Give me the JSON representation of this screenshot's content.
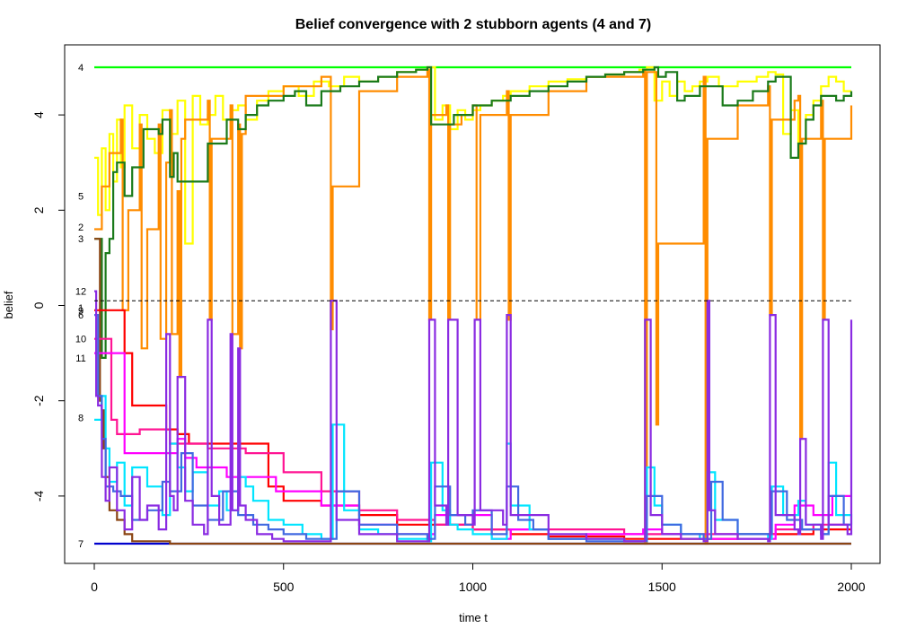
{
  "chart_data": {
    "type": "line",
    "title": "Belief convergence with 2 stubborn agents (4 and 7)",
    "xlabel": "time t",
    "ylabel": "belief",
    "xlim": [
      0,
      2000
    ],
    "ylim": [
      -5.5,
      5.0
    ],
    "xticks": [
      0,
      500,
      1000,
      1500,
      2000
    ],
    "yticks": [
      -4,
      -2,
      0,
      2,
      4
    ],
    "grid": false,
    "reference_line": {
      "y": 0.1,
      "style": "dashed"
    },
    "agent_labels": [
      {
        "text": "4",
        "y": 5.0
      },
      {
        "text": "5",
        "y": 2.3
      },
      {
        "text": "2",
        "y": 1.65
      },
      {
        "text": "3",
        "y": 1.4
      },
      {
        "text": "12",
        "y": 0.3
      },
      {
        "text": "1",
        "y": -0.05
      },
      {
        "text": "9",
        "y": -0.1
      },
      {
        "text": "6",
        "y": -0.2
      },
      {
        "text": "10",
        "y": -0.7
      },
      {
        "text": "11",
        "y": -1.1
      },
      {
        "text": "8",
        "y": -2.35
      },
      {
        "text": "7",
        "y": -5.0
      }
    ],
    "series": [
      {
        "color": "#00ff00",
        "x": [
          0,
          2000
        ],
        "y": [
          5.0,
          5.0
        ]
      },
      {
        "color": "#0000cd",
        "x": [
          0,
          2000
        ],
        "y": [
          -5.0,
          -5.0
        ]
      },
      {
        "color": "#ffff00",
        "x": [
          0,
          10,
          20,
          30,
          40,
          50,
          60,
          70,
          80,
          100,
          120,
          140,
          160,
          180,
          200,
          220,
          240,
          260,
          280,
          300,
          320,
          340,
          360,
          380,
          400,
          430,
          460,
          500,
          540,
          580,
          620,
          660,
          700,
          750,
          800,
          850,
          880,
          900,
          920,
          940,
          960,
          980,
          1000,
          1020,
          1050,
          1080,
          1100,
          1150,
          1200,
          1250,
          1300,
          1350,
          1400,
          1440,
          1460,
          1480,
          1500,
          1520,
          1540,
          1560,
          1580,
          1600,
          1620,
          1650,
          1700,
          1750,
          1780,
          1800,
          1820,
          1840,
          1860,
          1880,
          1900,
          1920,
          1940,
          1960,
          1980,
          2000
        ],
        "y": [
          3.1,
          1.9,
          3.3,
          2.0,
          3.6,
          2.6,
          3.9,
          2.9,
          4.2,
          3.3,
          4.0,
          3.5,
          3.2,
          4.1,
          3.6,
          4.3,
          1.3,
          4.4,
          3.8,
          4.0,
          4.4,
          3.9,
          4.1,
          4.2,
          3.9,
          4.3,
          4.5,
          4.6,
          4.4,
          4.7,
          4.6,
          4.8,
          4.7,
          4.8,
          4.9,
          4.95,
          5.0,
          3.9,
          4.2,
          3.7,
          4.1,
          3.9,
          4.1,
          4.2,
          4.3,
          4.4,
          4.5,
          4.6,
          4.7,
          4.75,
          4.8,
          4.85,
          4.9,
          4.95,
          5.0,
          4.3,
          4.7,
          4.4,
          4.7,
          4.5,
          4.6,
          4.7,
          4.8,
          4.6,
          4.7,
          4.8,
          4.9,
          4.85,
          3.6,
          4.1,
          3.4,
          4.0,
          4.3,
          4.6,
          4.8,
          4.7,
          4.5,
          4.5
        ]
      },
      {
        "color": "#ff8c00",
        "x": [
          0,
          20,
          40,
          70,
          75,
          90,
          120,
          125,
          140,
          170,
          175,
          190,
          200,
          205,
          220,
          225,
          230,
          240,
          300,
          305,
          310,
          360,
          365,
          380,
          385,
          390,
          400,
          500,
          600,
          625,
          630,
          700,
          800,
          880,
          885,
          890,
          930,
          935,
          940,
          970,
          1000,
          1010,
          1020,
          1090,
          1095,
          1100,
          1200,
          1300,
          1450,
          1455,
          1460,
          1480,
          1485,
          1490,
          1500,
          1550,
          1610,
          1615,
          1620,
          1700,
          1780,
          1785,
          1790,
          1850,
          1860,
          1865,
          1870,
          1920,
          1925,
          1930,
          2000
        ],
        "y": [
          1.6,
          2.5,
          3.2,
          3.9,
          -0.1,
          2.0,
          3.8,
          -0.9,
          1.6,
          3.8,
          -0.7,
          3.0,
          4.1,
          -0.6,
          2.4,
          -1.5,
          3.5,
          3.9,
          4.3,
          -0.3,
          3.5,
          4.2,
          -0.6,
          3.8,
          -0.9,
          3.6,
          4.4,
          4.6,
          4.8,
          -0.5,
          2.5,
          4.5,
          4.8,
          4.95,
          -0.3,
          4.0,
          4.2,
          -0.3,
          3.8,
          4.0,
          4.2,
          -0.3,
          4.0,
          4.5,
          -0.3,
          4.0,
          4.5,
          4.8,
          4.95,
          -5.0,
          4.9,
          4.9,
          -2.5,
          1.3,
          1.3,
          1.3,
          4.8,
          -5.0,
          3.5,
          4.2,
          4.6,
          -0.2,
          3.9,
          4.3,
          4.4,
          -2.8,
          3.5,
          4.3,
          -0.3,
          3.5,
          4.2
        ]
      },
      {
        "color": "#1a7a1a",
        "x": [
          0,
          20,
          30,
          40,
          50,
          60,
          80,
          100,
          130,
          170,
          180,
          200,
          210,
          220,
          250,
          280,
          300,
          310,
          350,
          380,
          400,
          430,
          460,
          500,
          530,
          560,
          600,
          650,
          700,
          750,
          800,
          850,
          880,
          890,
          920,
          950,
          1000,
          1050,
          1100,
          1150,
          1200,
          1250,
          1300,
          1350,
          1400,
          1450,
          1480,
          1490,
          1510,
          1540,
          1560,
          1600,
          1620,
          1660,
          1700,
          1740,
          1780,
          1800,
          1840,
          1860,
          1880,
          1900,
          1920,
          1960,
          1980,
          2000
        ],
        "y": [
          1.4,
          -1.1,
          1.1,
          1.4,
          2.8,
          3.0,
          2.3,
          2.9,
          3.7,
          3.6,
          3.9,
          2.7,
          3.2,
          2.6,
          2.6,
          2.6,
          3.4,
          3.4,
          3.9,
          3.7,
          4.0,
          4.2,
          4.3,
          4.4,
          4.5,
          4.2,
          4.5,
          4.6,
          4.7,
          4.8,
          4.9,
          4.95,
          5.0,
          3.8,
          3.8,
          4.0,
          4.2,
          4.3,
          4.4,
          4.5,
          4.6,
          4.7,
          4.8,
          4.85,
          4.9,
          4.95,
          5.0,
          4.8,
          4.9,
          4.3,
          4.4,
          4.6,
          4.6,
          4.2,
          4.3,
          4.5,
          4.7,
          4.8,
          3.1,
          3.4,
          3.9,
          4.2,
          4.4,
          4.3,
          4.4,
          4.5
        ]
      },
      {
        "color": "#8b4513",
        "x": [
          0,
          10,
          15,
          20,
          25,
          30,
          40,
          60,
          80,
          100,
          200,
          500,
          2000
        ],
        "y": [
          1.4,
          1.4,
          -2.0,
          -2.2,
          -3.0,
          -3.6,
          -4.3,
          -4.5,
          -4.8,
          -4.95,
          -5.0,
          -5.0,
          -5.0
        ]
      },
      {
        "color": "#ff0000",
        "x": [
          0,
          10,
          50,
          80,
          85,
          100,
          180,
          190,
          220,
          250,
          300,
          400,
          460,
          480,
          500,
          600,
          700,
          800,
          900,
          1000,
          1100,
          1200,
          1400,
          1600,
          1700,
          1800,
          1900,
          2000
        ],
        "y": [
          -0.1,
          -0.1,
          -0.1,
          -1.0,
          -1.0,
          -2.1,
          -2.1,
          -2.6,
          -2.7,
          -2.9,
          -2.9,
          -2.9,
          -3.8,
          -3.8,
          -4.1,
          -4.2,
          -4.4,
          -4.6,
          -4.6,
          -4.7,
          -4.8,
          -4.85,
          -4.9,
          -4.9,
          -4.8,
          -4.8,
          -4.7,
          -4.7
        ]
      },
      {
        "color": "#ff1493",
        "x": [
          0,
          10,
          40,
          45,
          60,
          120,
          200,
          300,
          400,
          500,
          600,
          700,
          800,
          900,
          1000,
          1200,
          1400,
          1600,
          1800,
          1900,
          2000
        ],
        "y": [
          -0.7,
          -0.7,
          -0.7,
          -2.4,
          -2.7,
          -2.6,
          -2.9,
          -3.0,
          -3.1,
          -3.5,
          -3.9,
          -4.3,
          -4.5,
          -4.6,
          -4.7,
          -4.7,
          -4.8,
          -4.8,
          -4.7,
          -4.6,
          -4.6
        ]
      },
      {
        "color": "#ff00ff",
        "x": [
          0,
          20,
          80,
          100,
          150,
          220,
          240,
          270,
          300,
          350,
          400,
          480,
          600,
          700,
          750,
          800,
          900,
          1000,
          1050,
          1100,
          1200,
          1300,
          1450,
          1500,
          1600,
          1700,
          1800,
          1850,
          1900,
          1950,
          2000
        ],
        "y": [
          -1.0,
          -1.0,
          -3.1,
          -3.1,
          -3.1,
          -2.8,
          -3.2,
          -3.4,
          -3.4,
          -3.6,
          -3.6,
          -3.9,
          -4.2,
          -4.6,
          -4.6,
          -4.8,
          -4.4,
          -4.4,
          -4.9,
          -4.7,
          -4.9,
          -4.8,
          -4.7,
          -4.8,
          -4.9,
          -4.9,
          -4.6,
          -4.2,
          -4.4,
          -4.0,
          -4.0
        ]
      },
      {
        "color": "#00e5ff",
        "x": [
          0,
          10,
          20,
          30,
          40,
          60,
          80,
          100,
          140,
          180,
          200,
          220,
          240,
          260,
          300,
          330,
          350,
          380,
          400,
          420,
          460,
          500,
          550,
          600,
          630,
          660,
          700,
          750,
          800,
          880,
          890,
          920,
          940,
          960,
          1000,
          1050,
          1090,
          1100,
          1150,
          1200,
          1300,
          1400,
          1450,
          1460,
          1480,
          1500,
          1550,
          1600,
          1620,
          1640,
          1700,
          1780,
          1790,
          1820,
          1860,
          1880,
          1920,
          1940,
          1960,
          2000
        ],
        "y": [
          -2.4,
          -2.4,
          -1.9,
          -3.0,
          -3.7,
          -3.3,
          -4.2,
          -3.4,
          -3.8,
          -4.4,
          -2.9,
          -3.4,
          -3.9,
          -3.5,
          -4.2,
          -3.9,
          -4.3,
          -3.6,
          -3.8,
          -4.1,
          -4.5,
          -4.6,
          -4.8,
          -4.9,
          -2.5,
          -4.3,
          -4.7,
          -4.8,
          -4.9,
          -4.95,
          -3.3,
          -4.3,
          -4.6,
          -4.7,
          -4.8,
          -4.9,
          -2.9,
          -4.2,
          -4.7,
          -4.9,
          -4.9,
          -4.95,
          -4.95,
          -3.4,
          -4.2,
          -4.6,
          -4.8,
          -4.9,
          -3.5,
          -4.5,
          -4.8,
          -4.9,
          -3.8,
          -4.4,
          -4.1,
          -4.6,
          -4.8,
          -3.3,
          -4.4,
          -4.6
        ]
      },
      {
        "color": "#4169e1",
        "x": [
          0,
          10,
          20,
          30,
          50,
          70,
          100,
          140,
          180,
          200,
          230,
          260,
          300,
          340,
          380,
          420,
          460,
          500,
          560,
          620,
          640,
          700,
          800,
          880,
          900,
          940,
          980,
          1000,
          1050,
          1090,
          1120,
          1160,
          1200,
          1300,
          1400,
          1450,
          1460,
          1500,
          1550,
          1610,
          1630,
          1660,
          1700,
          1780,
          1790,
          1830,
          1870,
          1920,
          1940,
          1980,
          2000
        ],
        "y": [
          -0.2,
          -1.9,
          -2.8,
          -3.8,
          -3.9,
          -4.0,
          -4.5,
          -4.3,
          -3.7,
          -3.9,
          -3.1,
          -4.2,
          -4.5,
          -3.9,
          -4.4,
          -4.6,
          -4.7,
          -4.8,
          -4.9,
          -4.9,
          -3.9,
          -4.6,
          -4.8,
          -4.9,
          -3.8,
          -4.4,
          -4.6,
          -4.3,
          -4.8,
          -3.8,
          -4.5,
          -4.7,
          -4.9,
          -4.95,
          -4.95,
          -4.95,
          -4.0,
          -4.6,
          -4.8,
          -4.9,
          -3.7,
          -4.5,
          -4.8,
          -4.8,
          -3.9,
          -4.5,
          -4.7,
          -4.8,
          -4.0,
          -4.6,
          -4.6
        ]
      },
      {
        "color": "#8a2be2",
        "x": [
          0,
          5,
          10,
          20,
          30,
          40,
          60,
          80,
          100,
          120,
          140,
          170,
          190,
          200,
          210,
          220,
          240,
          260,
          290,
          300,
          310,
          330,
          360,
          365,
          380,
          385,
          400,
          430,
          470,
          500,
          550,
          600,
          620,
          625,
          640,
          700,
          800,
          880,
          885,
          900,
          930,
          935,
          960,
          1000,
          1005,
          1020,
          1080,
          1090,
          1100,
          1200,
          1300,
          1400,
          1450,
          1455,
          1470,
          1500,
          1550,
          1610,
          1620,
          1625,
          1640,
          1700,
          1780,
          1785,
          1800,
          1850,
          1860,
          1865,
          1880,
          1920,
          1925,
          1940,
          1990,
          2000
        ],
        "y": [
          0.3,
          -1.9,
          -2.1,
          -3.6,
          -4.1,
          -3.4,
          -4.3,
          -4.7,
          -3.6,
          -4.5,
          -4.2,
          -4.7,
          -0.6,
          -4.0,
          -4.3,
          -1.5,
          -4.1,
          -4.6,
          -4.8,
          -0.3,
          -4.0,
          -4.6,
          -0.6,
          -4.3,
          -0.9,
          -4.2,
          -4.5,
          -4.8,
          -4.9,
          -4.95,
          -4.95,
          -4.95,
          -4.95,
          0.1,
          -4.5,
          -4.8,
          -4.95,
          -4.95,
          -0.3,
          -4.2,
          -4.6,
          -0.3,
          -4.4,
          -4.6,
          -0.3,
          -4.3,
          -4.6,
          -0.2,
          -4.4,
          -4.8,
          -4.9,
          -4.95,
          -4.95,
          -0.3,
          -4.4,
          -4.8,
          -4.9,
          -4.95,
          0.1,
          -4.3,
          -4.8,
          -4.9,
          -4.95,
          -0.2,
          -4.4,
          -4.7,
          -4.8,
          -2.8,
          -4.6,
          -4.9,
          -0.3,
          -4.6,
          -4.8,
          -0.3
        ]
      }
    ]
  }
}
